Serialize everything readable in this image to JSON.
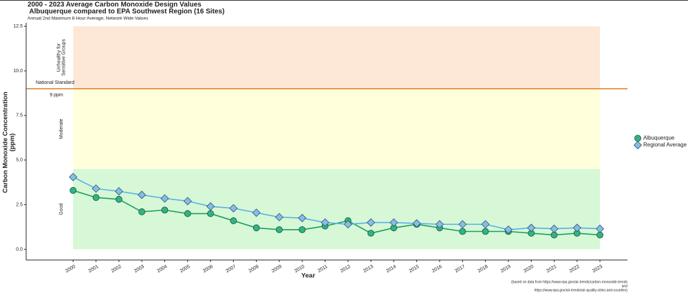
{
  "chart_data": {
    "type": "line",
    "title_lines": [
      "2000 - 2023 Average Carbon Monoxide Design Values",
      " Albuquerque compared to EPA Southwest Region (16 Sites)"
    ],
    "subtitle": "Annual 2nd Maximum 8-Hour Average, Network Wide Values",
    "ylabel_lines": [
      "Carbon Monoxide Concentration",
      "(ppm)"
    ],
    "xlabel": "Year",
    "caption_lines": [
      "(based on data from https://www.epa.gov/air-trends/carbon-monoxide-trends",
      "and",
      "https://www.epa.gov/air-trends/air-quality-cities-and-counties)"
    ],
    "x": [
      2000,
      2001,
      2002,
      2003,
      2004,
      2005,
      2006,
      2007,
      2008,
      2009,
      2010,
      2011,
      2012,
      2013,
      2014,
      2015,
      2016,
      2017,
      2018,
      2019,
      2020,
      2021,
      2022,
      2023
    ],
    "series": [
      {
        "name": "Albuquerque",
        "color": "#1a9e5f",
        "marker_color": "#2fb583",
        "marker": "circle",
        "values": [
          3.3,
          2.9,
          2.8,
          2.1,
          2.2,
          2.0,
          2.0,
          1.6,
          1.2,
          1.1,
          1.1,
          1.3,
          1.6,
          0.9,
          1.2,
          1.4,
          1.2,
          1.0,
          1.0,
          1.0,
          0.9,
          0.8,
          0.9,
          0.8
        ]
      },
      {
        "name": "Regional Average",
        "color": "#5aaee8",
        "marker_color": "#86bde6",
        "marker": "diamond",
        "values": [
          4.05,
          3.4,
          3.25,
          3.05,
          2.85,
          2.7,
          2.4,
          2.3,
          2.05,
          1.8,
          1.75,
          1.5,
          1.4,
          1.5,
          1.5,
          1.45,
          1.4,
          1.4,
          1.4,
          1.1,
          1.2,
          1.15,
          1.2,
          1.15
        ]
      }
    ],
    "bands": [
      {
        "label_lines": [
          "Good"
        ],
        "from": 0,
        "to": 4.5,
        "color": "#d6f8d6"
      },
      {
        "label_lines": [
          "Moderate"
        ],
        "from": 4.5,
        "to": 9,
        "color": "#ffffdc"
      },
      {
        "label_lines": [
          "Unhealthy for",
          "Sensitive Groups"
        ],
        "from": 9,
        "to": 12.5,
        "color": "#fde8d8"
      }
    ],
    "standard": {
      "value": 9,
      "label": "National Standard",
      "value_label": "9 ppm",
      "color": "#e07b1a"
    },
    "xlim": [
      1997.95,
      2024.2
    ],
    "ylim": [
      -0.6,
      12.7
    ],
    "xticks": [
      2000,
      2001,
      2002,
      2003,
      2004,
      2005,
      2006,
      2007,
      2008,
      2009,
      2010,
      2011,
      2012,
      2013,
      2014,
      2015,
      2016,
      2017,
      2018,
      2019,
      2020,
      2021,
      2022,
      2023
    ],
    "yticks": [
      {
        "value": 0,
        "label": "0.0"
      },
      2.5,
      {
        "value": 5,
        "label": "5.0"
      },
      7.5,
      {
        "value": 10,
        "label": "10.0"
      },
      12.5
    ],
    "legend": "right"
  }
}
